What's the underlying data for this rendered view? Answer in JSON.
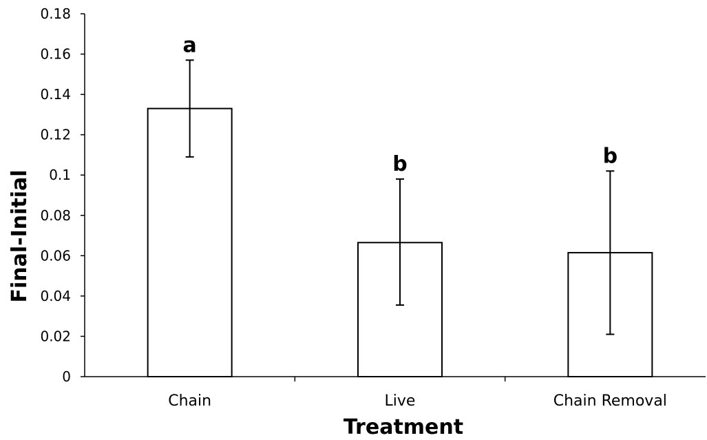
{
  "chart_data": {
    "type": "bar",
    "title": "",
    "xlabel": "Treatment",
    "ylabel": "Final-Initial",
    "categories": [
      "Chain",
      "Live",
      "Chain Removal"
    ],
    "values": [
      0.133,
      0.0665,
      0.0615
    ],
    "error_upper": [
      0.157,
      0.098,
      0.102
    ],
    "error_lower": [
      0.109,
      0.0355,
      0.021
    ],
    "significance_labels": [
      "a",
      "b",
      "b"
    ],
    "ylim": [
      0,
      0.18
    ],
    "y_ticks": [
      0,
      0.02,
      0.04,
      0.06,
      0.08,
      0.1,
      0.12,
      0.14,
      0.16,
      0.18
    ],
    "y_tick_labels": [
      "0",
      "0.02",
      "0.04",
      "0.06",
      "0.08",
      "0.1",
      "0.12",
      "0.14",
      "0.16",
      "0.18"
    ],
    "grid": false,
    "bar_fill": "#ffffff",
    "bar_stroke": "#000000"
  }
}
